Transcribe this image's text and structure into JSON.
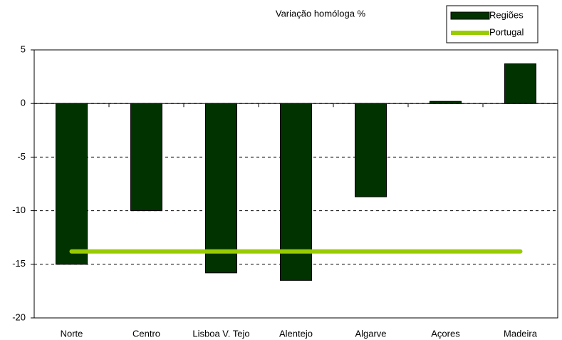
{
  "chart_data": {
    "type": "bar",
    "title": "Variação homóloga %",
    "categories": [
      "Norte",
      "Centro",
      "Lisboa V. Tejo",
      "Alentejo",
      "Algarve",
      "Açores",
      "Madeira"
    ],
    "series": [
      {
        "name": "Regiões",
        "type": "bar",
        "color": "#003300",
        "values": [
          -15,
          -10,
          -15.8,
          -16.5,
          -8.7,
          0.2,
          3.7
        ]
      },
      {
        "name": "Portugal",
        "type": "line",
        "color": "#99cc00",
        "values": [
          -13.8,
          -13.8,
          -13.8,
          -13.8,
          -13.8,
          -13.8,
          -13.8
        ]
      }
    ],
    "ylim": [
      -20,
      5
    ],
    "yticks": [
      5,
      0,
      -5,
      -10,
      -15,
      -20
    ],
    "grid": true,
    "legend": "top-right"
  }
}
